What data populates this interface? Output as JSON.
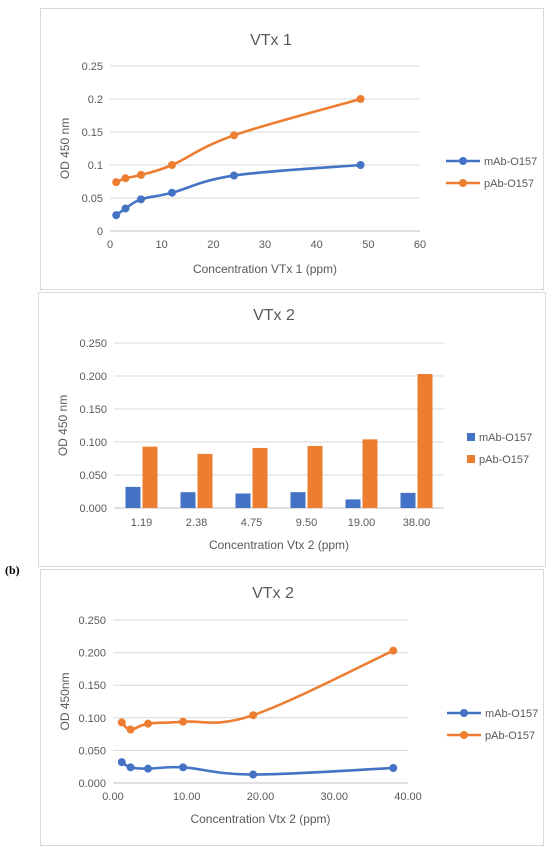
{
  "panel_label": "(b)",
  "colors": {
    "blue": "#4472C4",
    "orange": "#ED7D31",
    "grid": "#d9d9d9",
    "text": "#595959"
  },
  "chart_data": [
    {
      "type": "line",
      "title": "VTx 1",
      "xlabel": "Concentration VTx 1 (ppm)",
      "ylabel": "OD 450 nm",
      "xlim": [
        0,
        60
      ],
      "ylim": [
        0,
        0.25
      ],
      "x_ticks": [
        "0",
        "10",
        "20",
        "30",
        "40",
        "50",
        "60"
      ],
      "y_ticks": [
        "0",
        "0.05",
        "0.1",
        "0.15",
        "0.2",
        "0.25"
      ],
      "legend_position": "right",
      "series": [
        {
          "name": "mAb-O157",
          "x": [
            1.2,
            3,
            6,
            12,
            24,
            48.5
          ],
          "y": [
            0.024,
            0.034,
            0.048,
            0.058,
            0.084,
            0.1
          ]
        },
        {
          "name": "pAb-O157",
          "x": [
            1.2,
            3,
            6,
            12,
            24,
            48.5
          ],
          "y": [
            0.074,
            0.08,
            0.085,
            0.1,
            0.145,
            0.2
          ]
        }
      ]
    },
    {
      "type": "bar",
      "title": "VTx 2",
      "xlabel": "Concentration Vtx 2 (ppm)",
      "ylabel": "OD 450 nm",
      "ylim": [
        0,
        0.25
      ],
      "categories": [
        "1.19",
        "2.38",
        "4.75",
        "9.50",
        "19.00",
        "38.00"
      ],
      "y_ticks": [
        "0.000",
        "0.050",
        "0.100",
        "0.150",
        "0.200",
        "0.250"
      ],
      "legend_position": "right",
      "series": [
        {
          "name": "mAb-O157",
          "values": [
            0.032,
            0.024,
            0.022,
            0.024,
            0.013,
            0.023
          ]
        },
        {
          "name": "pAb-O157",
          "values": [
            0.093,
            0.082,
            0.091,
            0.094,
            0.104,
            0.203
          ]
        }
      ]
    },
    {
      "type": "line",
      "title": "VTx 2",
      "xlabel": "Concentration Vtx 2 (ppm)",
      "ylabel": "OD 450nm",
      "xlim": [
        0,
        40
      ],
      "ylim": [
        0,
        0.25
      ],
      "x_ticks": [
        "0.00",
        "10.00",
        "20.00",
        "30.00",
        "40.00"
      ],
      "y_ticks": [
        "0.000",
        "0.050",
        "0.100",
        "0.150",
        "0.200",
        "0.250"
      ],
      "legend_position": "right",
      "series": [
        {
          "name": "mAb-O157",
          "x": [
            1.19,
            2.38,
            4.75,
            9.5,
            19,
            38
          ],
          "y": [
            0.032,
            0.024,
            0.022,
            0.024,
            0.013,
            0.023
          ]
        },
        {
          "name": "pAb-O157",
          "x": [
            1.19,
            2.38,
            4.75,
            9.5,
            19,
            38
          ],
          "y": [
            0.093,
            0.082,
            0.091,
            0.094,
            0.104,
            0.203
          ]
        }
      ]
    }
  ]
}
